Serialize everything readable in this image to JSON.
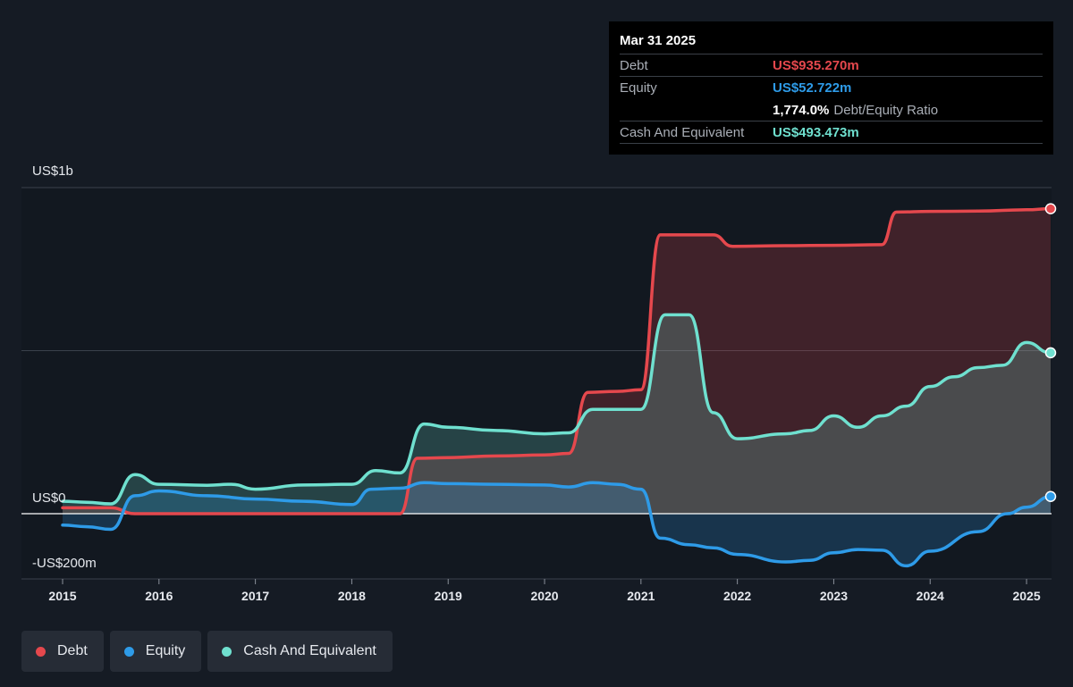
{
  "tooltip": {
    "date": "Mar 31 2025",
    "debt_label": "Debt",
    "debt_value": "US$935.270m",
    "equity_label": "Equity",
    "equity_value": "US$52.722m",
    "ratio_value": "1,774.0%",
    "ratio_label": "Debt/Equity Ratio",
    "cash_label": "Cash And Equivalent",
    "cash_value": "US$493.473m"
  },
  "legend": {
    "debt": "Debt",
    "equity": "Equity",
    "cash": "Cash And Equivalent"
  },
  "colors": {
    "debt": "#e5484d",
    "equity": "#2e9be8",
    "cash": "#6fe0cf",
    "background": "#151b24"
  },
  "chart_data": {
    "type": "area",
    "y_tick_labels": [
      "US$1b",
      "US$0",
      "-US$200m"
    ],
    "ylim": [
      -200,
      1000
    ],
    "xlim": [
      2015.0,
      2025.25
    ],
    "x_tick_labels": [
      "2015",
      "2016",
      "2017",
      "2018",
      "2019",
      "2020",
      "2021",
      "2022",
      "2023",
      "2024",
      "2025"
    ],
    "x_ticks": [
      2015,
      2016,
      2017,
      2018,
      2019,
      2020,
      2021,
      2022,
      2023,
      2024,
      2025
    ],
    "grid": true,
    "series": [
      {
        "name": "Debt",
        "points": [
          [
            2015.0,
            18
          ],
          [
            2015.5,
            18
          ],
          [
            2015.75,
            0
          ],
          [
            2016.0,
            0
          ],
          [
            2017.0,
            0
          ],
          [
            2018.0,
            0
          ],
          [
            2018.5,
            0
          ],
          [
            2018.68,
            170
          ],
          [
            2019.0,
            172
          ],
          [
            2019.5,
            177
          ],
          [
            2020.0,
            180
          ],
          [
            2020.25,
            185
          ],
          [
            2020.45,
            372
          ],
          [
            2020.75,
            375
          ],
          [
            2021.0,
            380
          ],
          [
            2021.2,
            855
          ],
          [
            2021.5,
            855
          ],
          [
            2021.75,
            855
          ],
          [
            2021.95,
            820
          ],
          [
            2022.5,
            822
          ],
          [
            2023.0,
            823
          ],
          [
            2023.5,
            825
          ],
          [
            2023.65,
            925
          ],
          [
            2024.0,
            927
          ],
          [
            2024.5,
            928
          ],
          [
            2025.0,
            932
          ],
          [
            2025.25,
            935.27
          ]
        ]
      },
      {
        "name": "Equity",
        "points": [
          [
            2015.0,
            -35
          ],
          [
            2015.25,
            -40
          ],
          [
            2015.5,
            -48
          ],
          [
            2015.75,
            55
          ],
          [
            2016.0,
            70
          ],
          [
            2016.5,
            55
          ],
          [
            2017.0,
            45
          ],
          [
            2017.5,
            38
          ],
          [
            2018.0,
            28
          ],
          [
            2018.2,
            75
          ],
          [
            2018.5,
            78
          ],
          [
            2018.75,
            95
          ],
          [
            2019.0,
            92
          ],
          [
            2019.5,
            90
          ],
          [
            2020.0,
            88
          ],
          [
            2020.25,
            82
          ],
          [
            2020.5,
            95
          ],
          [
            2020.75,
            90
          ],
          [
            2021.0,
            75
          ],
          [
            2021.2,
            -75
          ],
          [
            2021.5,
            -95
          ],
          [
            2021.75,
            -105
          ],
          [
            2022.0,
            -125
          ],
          [
            2022.5,
            -148
          ],
          [
            2022.75,
            -143
          ],
          [
            2023.0,
            -120
          ],
          [
            2023.25,
            -110
          ],
          [
            2023.5,
            -112
          ],
          [
            2023.75,
            -160
          ],
          [
            2024.0,
            -115
          ],
          [
            2024.5,
            -55
          ],
          [
            2024.8,
            0
          ],
          [
            2025.0,
            20
          ],
          [
            2025.25,
            52.722
          ]
        ]
      },
      {
        "name": "Cash And Equivalent",
        "points": [
          [
            2015.0,
            38
          ],
          [
            2015.25,
            35
          ],
          [
            2015.5,
            30
          ],
          [
            2015.75,
            120
          ],
          [
            2016.0,
            90
          ],
          [
            2016.5,
            87
          ],
          [
            2016.75,
            90
          ],
          [
            2017.0,
            75
          ],
          [
            2017.5,
            88
          ],
          [
            2018.0,
            90
          ],
          [
            2018.25,
            132
          ],
          [
            2018.5,
            125
          ],
          [
            2018.75,
            275
          ],
          [
            2019.0,
            265
          ],
          [
            2019.5,
            255
          ],
          [
            2020.0,
            245
          ],
          [
            2020.25,
            248
          ],
          [
            2020.5,
            320
          ],
          [
            2020.75,
            320
          ],
          [
            2021.0,
            320
          ],
          [
            2021.25,
            610
          ],
          [
            2021.5,
            610
          ],
          [
            2021.75,
            310
          ],
          [
            2022.0,
            230
          ],
          [
            2022.5,
            245
          ],
          [
            2022.75,
            255
          ],
          [
            2023.0,
            300
          ],
          [
            2023.25,
            265
          ],
          [
            2023.5,
            300
          ],
          [
            2023.75,
            330
          ],
          [
            2024.0,
            390
          ],
          [
            2024.25,
            420
          ],
          [
            2024.5,
            448
          ],
          [
            2024.75,
            455
          ],
          [
            2025.0,
            525
          ],
          [
            2025.25,
            493.473
          ]
        ]
      }
    ]
  }
}
